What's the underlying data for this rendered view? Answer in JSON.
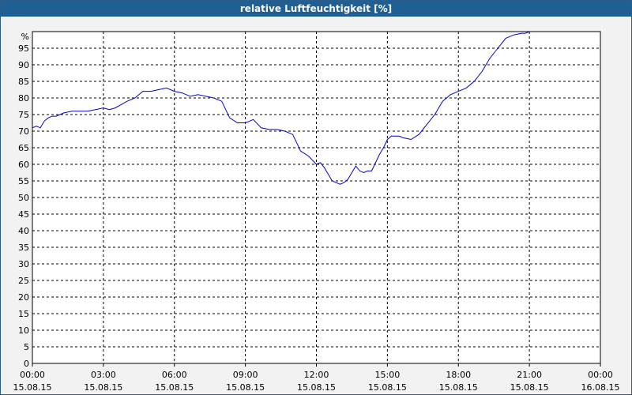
{
  "window": {
    "title": "relative Luftfeuchtigkeit [%]"
  },
  "colors": {
    "titlebar": "#1f5f94",
    "line": "#0000cc",
    "background": "#f2f2f2",
    "grid": "#000000"
  },
  "chart_data": {
    "type": "line",
    "title": "relative Luftfeuchtigkeit [%]",
    "ylabel": "%",
    "ylim": [
      0,
      100
    ],
    "yticks": [
      0,
      5,
      10,
      15,
      20,
      25,
      30,
      35,
      40,
      45,
      50,
      55,
      60,
      65,
      70,
      75,
      80,
      85,
      90,
      95
    ],
    "xlim_hours": [
      0,
      24
    ],
    "xticks": [
      {
        "time": "00:00",
        "date": "15.08.15"
      },
      {
        "time": "03:00",
        "date": "15.08.15"
      },
      {
        "time": "06:00",
        "date": "15.08.15"
      },
      {
        "time": "09:00",
        "date": "15.08.15"
      },
      {
        "time": "12:00",
        "date": "15.08.15"
      },
      {
        "time": "15:00",
        "date": "15.08.15"
      },
      {
        "time": "18:00",
        "date": "15.08.15"
      },
      {
        "time": "21:00",
        "date": "15.08.15"
      },
      {
        "time": "00:00",
        "date": "16.08.15"
      }
    ],
    "grid": true,
    "series": [
      {
        "x": [
          "00:00",
          "00:10",
          "00:20",
          "00:30",
          "00:40",
          "00:50",
          "01:00",
          "01:20",
          "01:40",
          "02:00",
          "02:20",
          "02:40",
          "03:00",
          "03:15",
          "03:30",
          "03:45",
          "04:00",
          "04:20",
          "04:40",
          "05:00",
          "05:20",
          "05:40",
          "06:00",
          "06:20",
          "06:40",
          "07:00",
          "07:20",
          "07:40",
          "08:00",
          "08:20",
          "08:40",
          "09:00",
          "09:10",
          "09:20",
          "09:40",
          "10:00",
          "10:20",
          "10:40",
          "11:00",
          "11:20",
          "11:40",
          "12:00",
          "12:10",
          "12:20",
          "12:40",
          "13:00",
          "13:10",
          "13:20",
          "13:40",
          "13:50",
          "14:00",
          "14:10",
          "14:20",
          "14:40",
          "14:50",
          "15:00",
          "15:10",
          "15:30",
          "15:40",
          "16:00",
          "16:20",
          "16:40",
          "17:00",
          "17:20",
          "17:40",
          "18:00",
          "18:20",
          "18:40",
          "19:00",
          "19:20",
          "19:40",
          "20:00",
          "20:20",
          "20:40",
          "20:50",
          "21:00"
        ],
        "y": [
          71,
          71.5,
          71,
          73,
          74,
          74.5,
          74.5,
          75.5,
          76,
          76,
          76,
          76.5,
          77,
          76.5,
          77,
          78,
          79,
          80,
          82,
          82,
          82.5,
          83,
          82,
          81.5,
          80.5,
          81,
          80.5,
          80,
          79,
          74,
          72.5,
          72.5,
          73,
          73.5,
          71,
          70.5,
          70.5,
          70,
          69,
          64,
          62.5,
          60,
          60.5,
          59,
          55,
          54,
          54.5,
          55.5,
          59.5,
          58,
          57.5,
          58,
          58,
          63,
          65,
          67.5,
          68.5,
          68.5,
          68,
          67.5,
          69,
          72,
          75,
          79,
          81,
          82,
          83,
          85,
          88,
          92,
          95,
          98,
          99,
          99.5,
          99.5,
          100
        ]
      }
    ]
  }
}
